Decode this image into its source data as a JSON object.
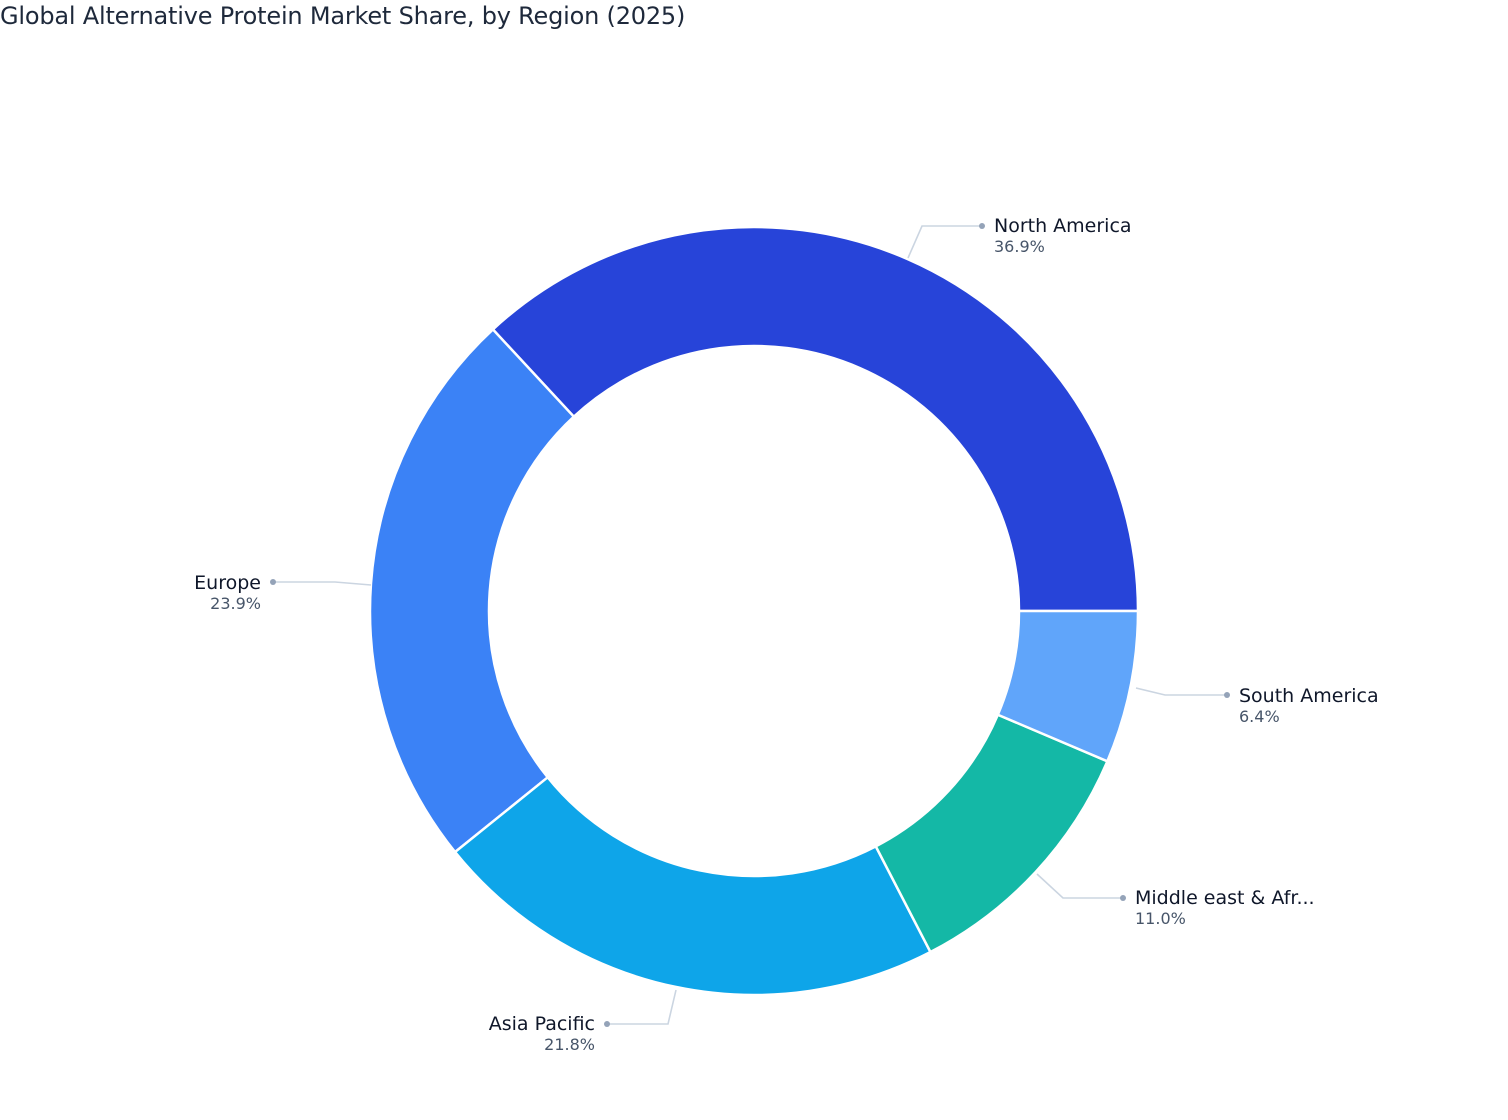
{
  "title": "Global Alternative Protein Market Share, by Region (2025)",
  "chart_data": {
    "type": "pie",
    "subtype": "donut",
    "title": "Global Alternative Protein Market Share, by Region (2025)",
    "unit": "%",
    "legend": "none (direct labels with leader lines)",
    "categories": [
      "North America",
      "Europe",
      "Asia Pacific",
      "Middle east & Afr...",
      "South America"
    ],
    "values": [
      36.9,
      23.9,
      21.8,
      11.0,
      6.4
    ],
    "colors": [
      "#2744d9",
      "#3b82f6",
      "#0ea5e9",
      "#14b8a6",
      "#60a5fa"
    ],
    "start_angle_deg": 0,
    "direction": "counterclockwise",
    "hole_ratio": 0.69
  },
  "labels": [
    {
      "name": "North America",
      "pct": "36.9%"
    },
    {
      "name": "Europe",
      "pct": "23.9%"
    },
    {
      "name": "Asia Pacific",
      "pct": "21.8%"
    },
    {
      "name": "Middle east & Afr...",
      "pct": "11.0%"
    },
    {
      "name": "South America",
      "pct": "6.4%"
    }
  ]
}
